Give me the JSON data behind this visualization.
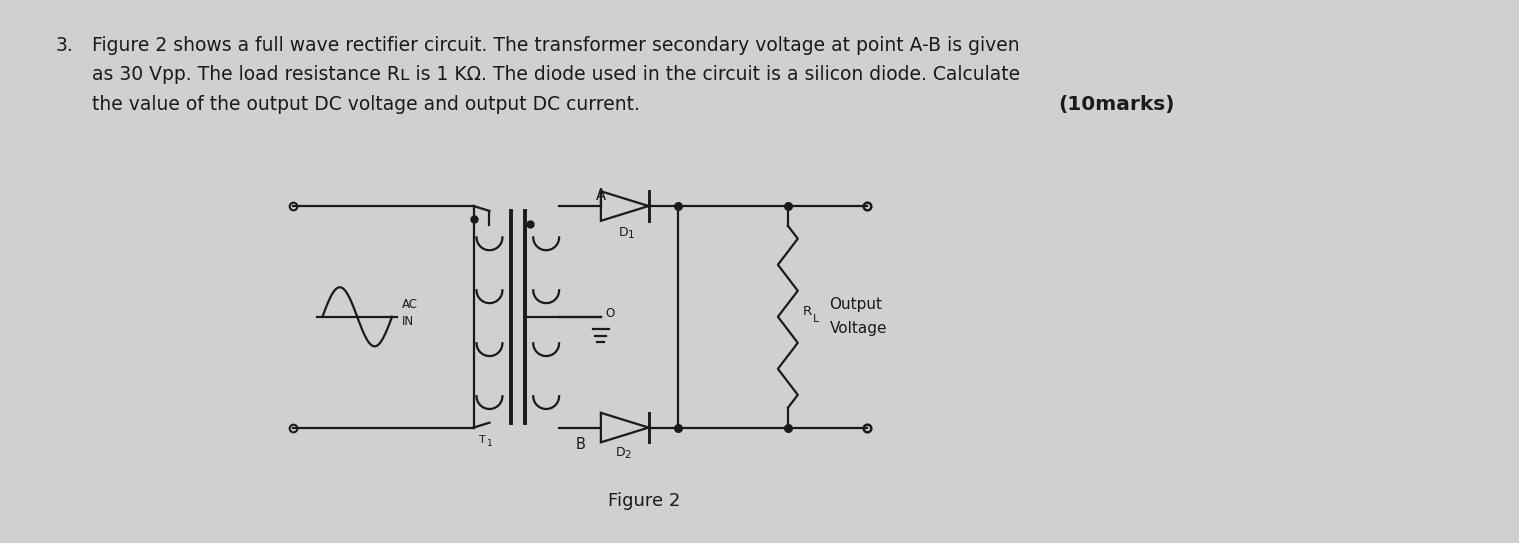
{
  "bg": "#d0d0d0",
  "tc": "#1a1a1a",
  "cc": "#1a1a1a",
  "q_num": "3.",
  "line1": "Figure 2 shows a full wave rectifier circuit. The transformer secondary voltage at point A-B is given",
  "line2": "as 30 Vpp. The load resistance Rʟ is 1 KΩ. The diode used in the circuit is a silicon diode. Calculate",
  "line3": "the value of the output DC voltage and output DC current.",
  "marks": "(10marks)",
  "fig_label": "Figure 2",
  "fs_body": 13.5,
  "fs_marks": 14.5,
  "fs_fig": 13,
  "lw": 1.6
}
